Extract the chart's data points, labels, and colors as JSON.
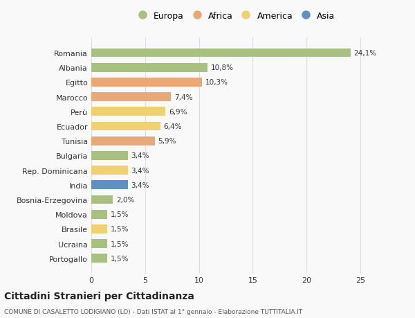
{
  "countries": [
    "Romania",
    "Albania",
    "Egitto",
    "Marocco",
    "Perù",
    "Ecuador",
    "Tunisia",
    "Bulgaria",
    "Rep. Dominicana",
    "India",
    "Bosnia-Erzegovina",
    "Moldova",
    "Brasile",
    "Ucraina",
    "Portogallo"
  ],
  "values": [
    24.1,
    10.8,
    10.3,
    7.4,
    6.9,
    6.4,
    5.9,
    3.4,
    3.4,
    3.4,
    2.0,
    1.5,
    1.5,
    1.5,
    1.5
  ],
  "labels": [
    "24,1%",
    "10,8%",
    "10,3%",
    "7,4%",
    "6,9%",
    "6,4%",
    "5,9%",
    "3,4%",
    "3,4%",
    "3,4%",
    "2,0%",
    "1,5%",
    "1,5%",
    "1,5%",
    "1,5%"
  ],
  "continent": [
    "Europa",
    "Europa",
    "Africa",
    "Africa",
    "America",
    "America",
    "Africa",
    "Europa",
    "America",
    "Asia",
    "Europa",
    "Europa",
    "America",
    "Europa",
    "Europa"
  ],
  "colors": {
    "Europa": "#a8c080",
    "Africa": "#e8a878",
    "America": "#f0d070",
    "Asia": "#6090c0"
  },
  "legend_labels": [
    "Europa",
    "Africa",
    "America",
    "Asia"
  ],
  "legend_colors": [
    "#a8c080",
    "#e8a878",
    "#f0d070",
    "#6090c0"
  ],
  "title": "Cittadini Stranieri per Cittadinanza",
  "subtitle": "COMUNE DI CASALETTO LODIGIANO (LO) - Dati ISTAT al 1° gennaio - Elaborazione TUTTITALIA.IT",
  "xlim": [
    0,
    27
  ],
  "xticks": [
    0,
    5,
    10,
    15,
    20,
    25
  ],
  "background_color": "#f9f9f9",
  "grid_color": "#dddddd"
}
